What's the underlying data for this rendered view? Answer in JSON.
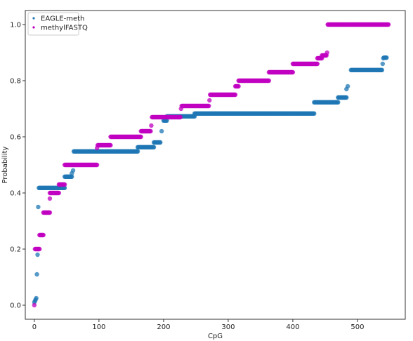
{
  "chart_data": {
    "type": "scatter",
    "xlabel": "CpG",
    "ylabel": "Probability",
    "xlim": [
      -14,
      574
    ],
    "ylim": [
      -0.05,
      1.05
    ],
    "xticks": [
      0,
      100,
      200,
      300,
      400,
      500
    ],
    "yticks": [
      0.0,
      0.2,
      0.4,
      0.6,
      0.8,
      1.0
    ],
    "xtick_labels": [
      "0",
      "100",
      "200",
      "300",
      "400",
      "500"
    ],
    "ytick_labels": [
      "0.0",
      "0.2",
      "0.4",
      "0.6",
      "0.8",
      "1.0"
    ],
    "grid": false,
    "legend_position": "top-left",
    "series": [
      {
        "name": "EAGLE-meth",
        "color": "#1f77b4",
        "marker_alpha": 0.75,
        "points": [
          [
            0,
            0.01
          ],
          [
            1,
            0.015
          ],
          [
            2,
            0.02
          ],
          [
            3,
            0.025
          ],
          [
            4,
            0.11
          ],
          [
            5,
            0.18
          ],
          [
            6,
            0.35
          ],
          {
            "x0": 7,
            "x1": 47,
            "y": 0.418
          },
          {
            "x0": 47,
            "x1": 58,
            "y": 0.458
          },
          [
            58,
            0.47
          ],
          [
            60,
            0.48
          ],
          {
            "x0": 61,
            "x1": 160,
            "y": 0.548
          },
          {
            "x0": 160,
            "x1": 185,
            "y": 0.563
          },
          {
            "x0": 185,
            "x1": 195,
            "y": 0.58
          },
          [
            197,
            0.62
          ],
          {
            "x0": 200,
            "x1": 205,
            "y": 0.658
          },
          {
            "x0": 205,
            "x1": 248,
            "y": 0.673
          },
          {
            "x0": 248,
            "x1": 433,
            "y": 0.683
          },
          {
            "x0": 433,
            "x1": 470,
            "y": 0.723
          },
          {
            "x0": 470,
            "x1": 483,
            "y": 0.74
          },
          [
            483,
            0.77
          ],
          [
            485,
            0.78
          ],
          {
            "x0": 490,
            "x1": 538,
            "y": 0.838
          },
          [
            539,
            0.86
          ],
          [
            540,
            0.88
          ],
          {
            "x0": 541,
            "x1": 545,
            "y": 0.882
          }
        ]
      },
      {
        "name": "methylFASTQ",
        "color": "#c000c0",
        "marker_alpha": 0.75,
        "points": [
          [
            0,
            0.0
          ],
          {
            "x0": 1,
            "x1": 8,
            "y": 0.2
          },
          {
            "x0": 8,
            "x1": 14,
            "y": 0.25
          },
          {
            "x0": 14,
            "x1": 24,
            "y": 0.33
          },
          [
            24,
            0.38
          ],
          {
            "x0": 24,
            "x1": 38,
            "y": 0.4
          },
          {
            "x0": 38,
            "x1": 47,
            "y": 0.43
          },
          {
            "x0": 47,
            "x1": 97,
            "y": 0.5
          },
          [
            97,
            0.56
          ],
          {
            "x0": 98,
            "x1": 118,
            "y": 0.57
          },
          {
            "x0": 118,
            "x1": 165,
            "y": 0.6
          },
          {
            "x0": 165,
            "x1": 180,
            "y": 0.62
          },
          [
            181,
            0.64
          ],
          {
            "x0": 182,
            "x1": 226,
            "y": 0.67
          },
          [
            227,
            0.7
          ],
          {
            "x0": 228,
            "x1": 270,
            "y": 0.71
          },
          [
            271,
            0.73
          ],
          {
            "x0": 272,
            "x1": 311,
            "y": 0.75
          },
          {
            "x0": 311,
            "x1": 316,
            "y": 0.78
          },
          {
            "x0": 316,
            "x1": 363,
            "y": 0.8
          },
          {
            "x0": 363,
            "x1": 400,
            "y": 0.83
          },
          {
            "x0": 400,
            "x1": 438,
            "y": 0.86
          },
          {
            "x0": 438,
            "x1": 445,
            "y": 0.88
          },
          {
            "x0": 445,
            "x1": 452,
            "y": 0.89
          },
          [
            453,
            0.9
          ],
          {
            "x0": 454,
            "x1": 548,
            "y": 1.0
          }
        ]
      }
    ]
  }
}
